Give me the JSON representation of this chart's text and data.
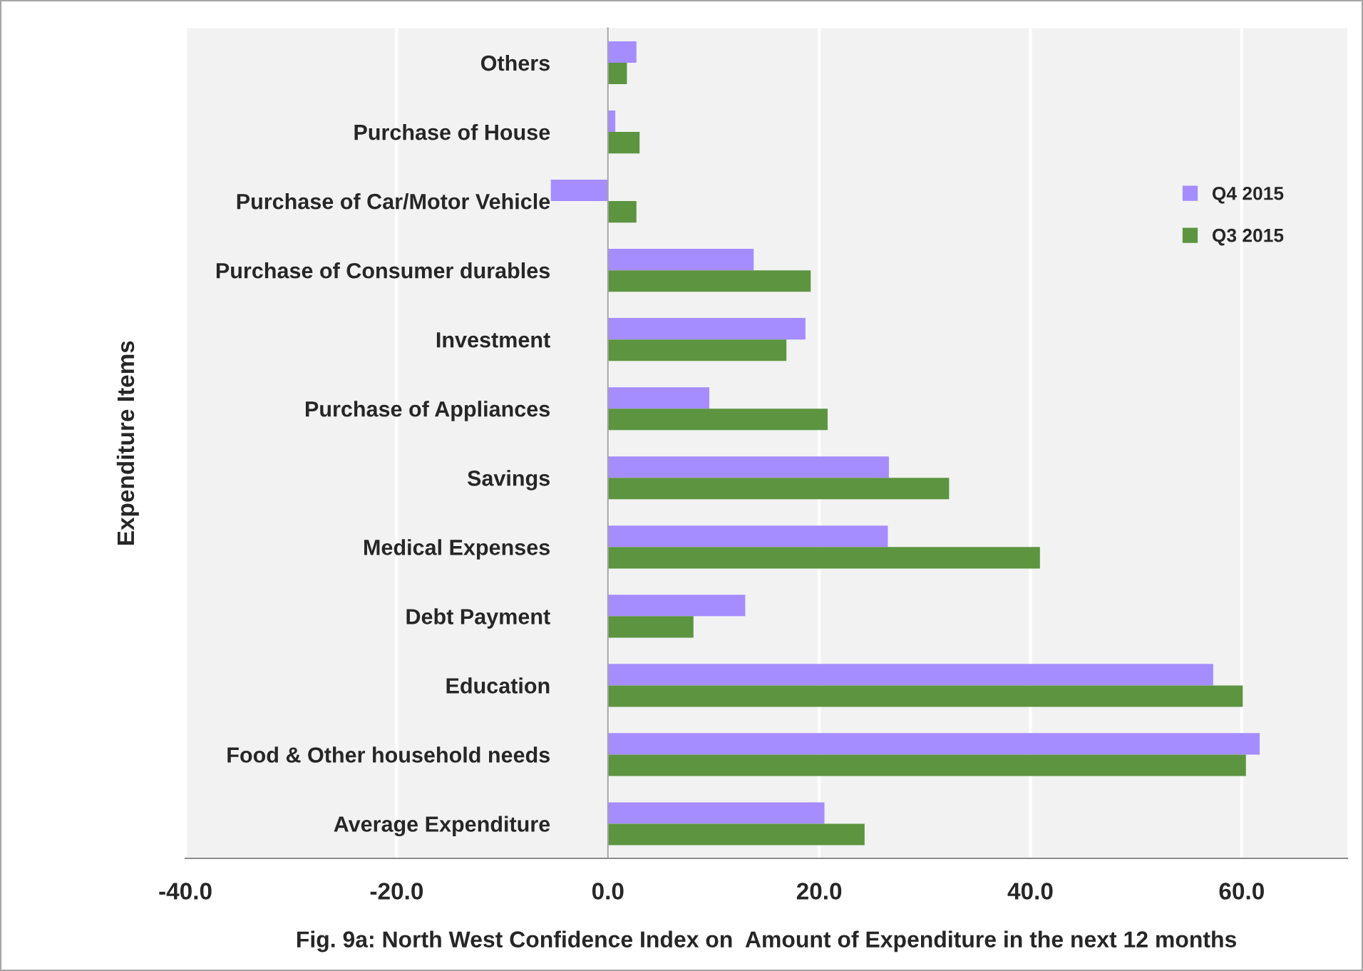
{
  "chart_data": {
    "type": "bar",
    "orientation": "horizontal",
    "title": "Fig. 9a: North West Confidence Index on  Amount of Expenditure in the next 12 months",
    "ylabel": "Expenditure Items",
    "categories": [
      "Others",
      "Purchase of House",
      "Purchase of Car/Motor Vehicle",
      "Purchase of Consumer durables",
      "Investment",
      "Purchase of Appliances",
      "Savings",
      "Medical Expenses",
      "Debt Payment",
      "Education",
      "Food & Other household needs",
      "Average Expenditure"
    ],
    "series": [
      {
        "name": "Q4 2015",
        "color": "#a58cff",
        "values": [
          2.7,
          0.7,
          -5.4,
          13.8,
          18.7,
          9.6,
          26.6,
          26.5,
          13.0,
          57.3,
          61.7,
          20.5
        ]
      },
      {
        "name": "Q3 2015",
        "color": "#5c9440",
        "values": [
          1.8,
          3.0,
          2.7,
          19.2,
          16.9,
          20.8,
          32.3,
          40.9,
          8.1,
          60.1,
          60.4,
          24.3
        ]
      }
    ],
    "xlim": [
      -40,
      70
    ],
    "xticks": [
      {
        "value": -40,
        "label": "-40.0"
      },
      {
        "value": -20,
        "label": "-20.0"
      },
      {
        "value": 0,
        "label": "0.0"
      },
      {
        "value": 20,
        "label": "20.0"
      },
      {
        "value": 40,
        "label": "40.0"
      },
      {
        "value": 60,
        "label": "60.0"
      }
    ],
    "grid": "x",
    "legend": "top right"
  }
}
